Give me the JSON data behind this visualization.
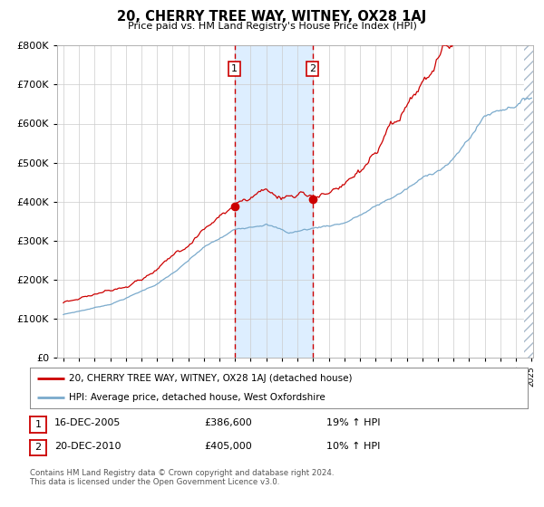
{
  "title": "20, CHERRY TREE WAY, WITNEY, OX28 1AJ",
  "subtitle": "Price paid vs. HM Land Registry's House Price Index (HPI)",
  "legend_line1": "20, CHERRY TREE WAY, WITNEY, OX28 1AJ (detached house)",
  "legend_line2": "HPI: Average price, detached house, West Oxfordshire",
  "transaction1_label": "1",
  "transaction1_date": "16-DEC-2005",
  "transaction1_price": 386600,
  "transaction1_hpi": "19% ↑ HPI",
  "transaction2_label": "2",
  "transaction2_date": "20-DEC-2010",
  "transaction2_price": 405000,
  "transaction2_hpi": "10% ↑ HPI",
  "footer": "Contains HM Land Registry data © Crown copyright and database right 2024.\nThis data is licensed under the Open Government Licence v3.0.",
  "red_color": "#cc0000",
  "blue_color": "#7aaacc",
  "highlight_color": "#ddeeff",
  "grid_color": "#cccccc",
  "background_color": "#ffffff",
  "ylim": [
    0,
    800000
  ],
  "yticks": [
    0,
    100000,
    200000,
    300000,
    400000,
    500000,
    600000,
    700000,
    800000
  ],
  "year_start": 1995,
  "year_end": 2025,
  "transaction1_year": 2005.96,
  "transaction2_year": 2010.96
}
